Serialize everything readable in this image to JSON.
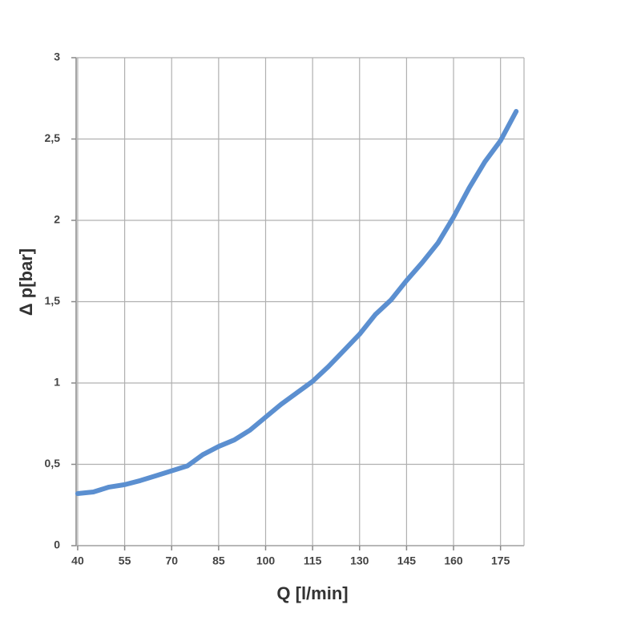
{
  "chart_data": {
    "type": "line",
    "x_label": "Q [l/min]",
    "y_label": "Δ p[bar]",
    "x": [
      40,
      45,
      50,
      55,
      60,
      65,
      70,
      75,
      80,
      85,
      90,
      95,
      100,
      105,
      110,
      115,
      120,
      125,
      130,
      135,
      140,
      145,
      150,
      155,
      160,
      165,
      170,
      175,
      180
    ],
    "series": [
      {
        "color": "#5b8fd0",
        "values": [
          0.32,
          0.33,
          0.36,
          0.375,
          0.4,
          0.43,
          0.46,
          0.49,
          0.56,
          0.61,
          0.65,
          0.71,
          0.79,
          0.87,
          0.94,
          1.01,
          1.1,
          1.2,
          1.3,
          1.42,
          1.51,
          1.63,
          1.74,
          1.86,
          2.02,
          2.2,
          2.36,
          2.49,
          2.67
        ]
      }
    ],
    "xlim": [
      39.5,
      182.5
    ],
    "xticks": [
      40,
      55,
      70,
      85,
      100,
      115,
      130,
      145,
      160,
      175
    ],
    "ylim": [
      0,
      3
    ],
    "yticks": [
      0,
      {
        "value": 0.5,
        "label": "0,5"
      },
      1,
      {
        "value": 1.5,
        "label": "1,5"
      },
      2,
      {
        "value": 2.5,
        "label": "2,5"
      },
      3
    ],
    "grid": true
  }
}
